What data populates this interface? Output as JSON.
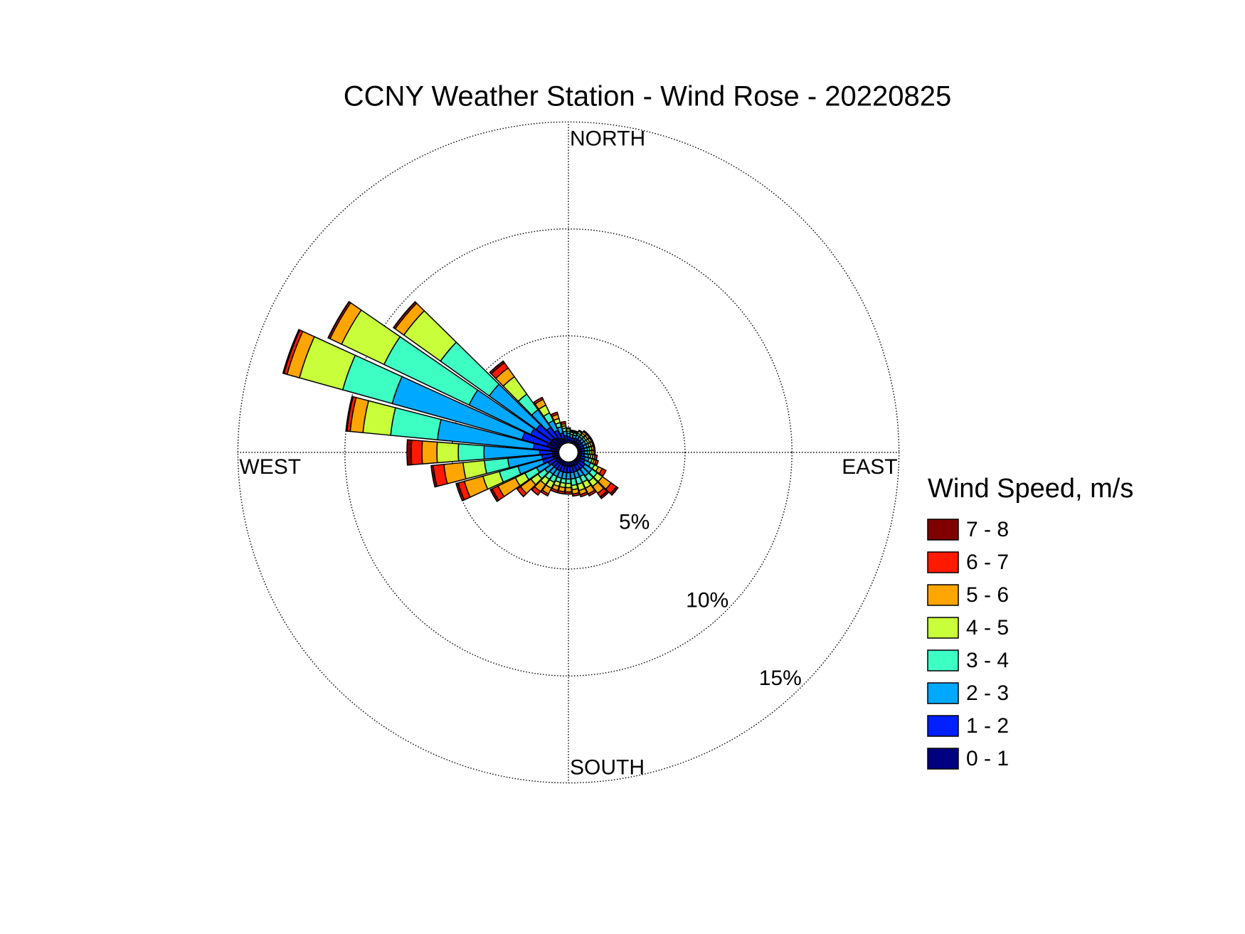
{
  "chart_data": {
    "type": "windrose",
    "title": "CCNY Weather Station - Wind Rose - 20220825",
    "legend_title": "Wind Speed, m/s",
    "x": [
      0,
      10,
      20,
      30,
      40,
      50,
      60,
      70,
      80,
      90,
      100,
      110,
      120,
      130,
      140,
      150,
      160,
      170,
      180,
      190,
      200,
      210,
      220,
      230,
      240,
      250,
      260,
      270,
      280,
      290,
      300,
      310,
      320,
      330,
      340,
      350
    ],
    "angle_labels": [
      {
        "value": 0,
        "label": "NORTH"
      },
      {
        "value": 90,
        "label": "EAST"
      },
      {
        "value": 180,
        "label": "SOUTH"
      },
      {
        "value": 270,
        "label": "WEST"
      }
    ],
    "rlim": [
      0,
      15
    ],
    "rticks": [
      {
        "value": 5,
        "label": "5%"
      },
      {
        "value": 10,
        "label": "10%"
      },
      {
        "value": 15,
        "label": "15%"
      }
    ],
    "grid": true,
    "legend_position": "right",
    "series": [
      {
        "name": "0 - 1",
        "color": "#000080",
        "values": [
          0.15,
          0.1,
          0.1,
          0.15,
          0.15,
          0.15,
          0.15,
          0.15,
          0.15,
          0.15,
          0.15,
          0.15,
          0.2,
          0.2,
          0.2,
          0.2,
          0.2,
          0.2,
          0.2,
          0.2,
          0.2,
          0.2,
          0.2,
          0.2,
          0.2,
          0.3,
          0.3,
          0.3,
          0.4,
          0.6,
          0.5,
          0.5,
          0.4,
          0.3,
          0.2,
          0.15
        ]
      },
      {
        "name": "1 - 2",
        "color": "#0020ff",
        "values": [
          0.15,
          0.15,
          0.15,
          0.15,
          0.15,
          0.15,
          0.15,
          0.15,
          0.15,
          0.15,
          0.15,
          0.2,
          0.2,
          0.3,
          0.3,
          0.3,
          0.3,
          0.3,
          0.3,
          0.3,
          0.3,
          0.3,
          0.3,
          0.3,
          0.4,
          0.5,
          0.5,
          0.6,
          0.8,
          1.2,
          1.0,
          0.9,
          0.6,
          0.4,
          0.3,
          0.2
        ]
      },
      {
        "name": "2 - 3",
        "color": "#00a8ff",
        "values": [
          0.15,
          0.15,
          0.15,
          0.15,
          0.15,
          0.15,
          0.15,
          0.15,
          0.15,
          0.15,
          0.2,
          0.2,
          0.3,
          0.4,
          0.4,
          0.3,
          0.3,
          0.3,
          0.3,
          0.3,
          0.3,
          0.3,
          0.3,
          0.4,
          0.6,
          1.2,
          1.6,
          2.6,
          4.5,
          6.3,
          3.2,
          2.7,
          1.0,
          0.5,
          0.3,
          0.2
        ]
      },
      {
        "name": "3 - 4",
        "color": "#3dffc3",
        "values": [
          0.1,
          0.1,
          0.1,
          0.1,
          0.1,
          0.1,
          0.1,
          0.1,
          0.1,
          0.1,
          0.1,
          0.15,
          0.2,
          0.3,
          0.3,
          0.3,
          0.3,
          0.3,
          0.2,
          0.2,
          0.2,
          0.3,
          0.3,
          0.4,
          0.6,
          0.9,
          1.1,
          1.2,
          2.2,
          2.4,
          4.4,
          2.8,
          0.9,
          0.4,
          0.2,
          0.15
        ]
      },
      {
        "name": "4 - 5",
        "color": "#c8ff3a",
        "values": [
          0.1,
          0.05,
          0.05,
          0.1,
          0.1,
          0.1,
          0.1,
          0.1,
          0.1,
          0.1,
          0.1,
          0.1,
          0.2,
          0.3,
          0.3,
          0.3,
          0.3,
          0.2,
          0.2,
          0.2,
          0.2,
          0.3,
          0.3,
          0.4,
          0.5,
          0.8,
          1.0,
          1.0,
          1.3,
          2.1,
          2.2,
          2.1,
          1.0,
          0.4,
          0.2,
          0.1
        ]
      },
      {
        "name": "5 - 6",
        "color": "#ffa500",
        "values": [
          0.05,
          0.05,
          0.05,
          0.05,
          0.1,
          0.1,
          0.1,
          0.1,
          0.1,
          0.1,
          0.1,
          0.1,
          0.2,
          0.5,
          0.4,
          0.3,
          0.2,
          0.2,
          0.2,
          0.2,
          0.2,
          0.3,
          0.4,
          0.6,
          0.9,
          0.9,
          0.9,
          0.7,
          0.6,
          0.6,
          0.6,
          0.5,
          0.5,
          0.3,
          0.2,
          0.1
        ]
      },
      {
        "name": "6 - 7",
        "color": "#ff1a00",
        "values": [
          0,
          0,
          0,
          0,
          0.05,
          0.05,
          0.05,
          0.05,
          0.05,
          0.05,
          0.1,
          0.1,
          0.2,
          0.3,
          0.2,
          0.1,
          0.1,
          0.1,
          0.1,
          0.1,
          0.1,
          0.1,
          0.2,
          0.2,
          0.3,
          0.3,
          0.5,
          0.5,
          0.15,
          0.15,
          0.08,
          0.08,
          0.3,
          0.1,
          0.1,
          0.1
        ]
      },
      {
        "name": "7 - 8",
        "color": "#800000",
        "values": [
          0,
          0,
          0,
          0,
          0,
          0,
          0,
          0,
          0,
          0,
          0,
          0,
          0,
          0.1,
          0.1,
          0,
          0,
          0,
          0,
          0,
          0,
          0,
          0,
          0,
          0.1,
          0.1,
          0.1,
          0.2,
          0.05,
          0.05,
          0.02,
          0.02,
          0.1,
          0,
          0,
          0
        ]
      }
    ]
  }
}
